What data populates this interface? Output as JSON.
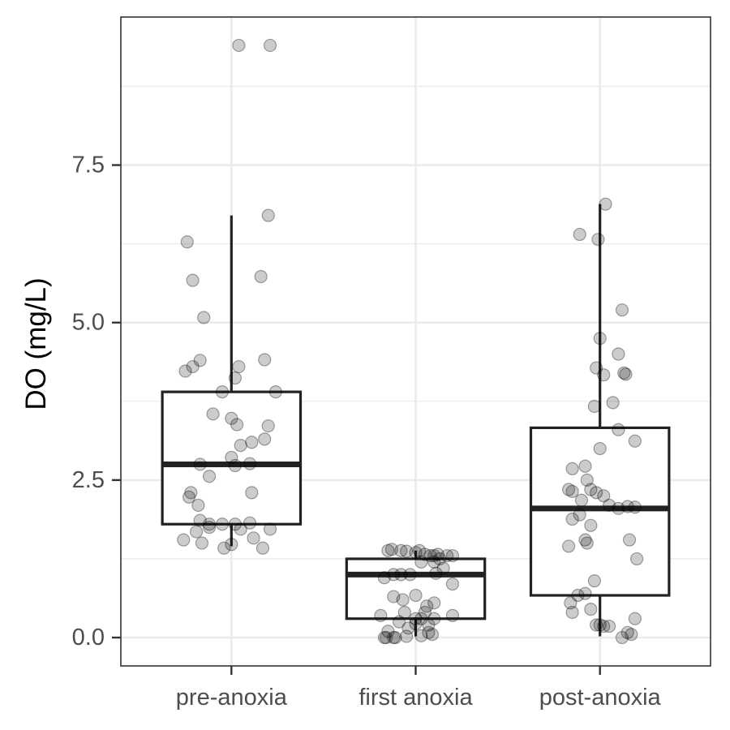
{
  "chart_data": {
    "type": "box",
    "title": "",
    "xlabel": "",
    "ylabel": "DO (mg/L)",
    "ylim": [
      -0.45,
      9.85
    ],
    "yticks": [
      0.0,
      2.5,
      5.0,
      7.5
    ],
    "ytick_labels": [
      "0.0",
      "2.5",
      "5.0",
      "7.5"
    ],
    "grid": true,
    "categories": [
      "pre-anoxia",
      "first anoxia",
      "post-anoxia"
    ],
    "boxes": [
      {
        "category": "pre-anoxia",
        "whisker_low": 1.45,
        "q1": 1.8,
        "median": 2.75,
        "q3": 3.9,
        "whisker_high": 6.7
      },
      {
        "category": "first anoxia",
        "whisker_low": 0.02,
        "q1": 0.3,
        "median": 1.0,
        "q3": 1.25,
        "whisker_high": 1.38
      },
      {
        "category": "post-anoxia",
        "whisker_low": 0.02,
        "q1": 0.67,
        "median": 2.05,
        "q3": 3.33,
        "whisker_high": 6.88
      }
    ],
    "points": [
      {
        "category": "pre-anoxia",
        "jitter": [
          0.04,
          0.21,
          -0.24,
          0.2,
          0.16,
          -0.21,
          -0.15,
          0.18,
          -0.25,
          -0.17,
          -0.21,
          0.04,
          0.02,
          -0.05,
          0.24,
          0.2,
          -0.1,
          0.0,
          0.03,
          0.11,
          0.18,
          0.05,
          0.0,
          -0.17,
          0.02,
          0.1,
          -0.12,
          -0.22,
          0.11,
          -0.23,
          -0.18,
          -0.17,
          0.02,
          0.1,
          -0.05,
          -0.12,
          0.05,
          0.21,
          -0.19,
          -0.26,
          0.12,
          -0.04,
          0.0,
          0.17,
          -0.16,
          -0.12
        ],
        "values": [
          9.4,
          9.4,
          6.28,
          6.7,
          5.73,
          5.67,
          5.08,
          4.41,
          4.23,
          4.4,
          4.3,
          4.3,
          4.12,
          3.9,
          3.9,
          3.36,
          3.55,
          3.48,
          3.38,
          3.1,
          3.15,
          3.05,
          2.86,
          2.75,
          2.73,
          2.76,
          2.56,
          2.3,
          2.3,
          2.23,
          2.1,
          1.86,
          1.8,
          1.82,
          1.8,
          1.75,
          1.72,
          1.72,
          1.68,
          1.55,
          1.58,
          1.42,
          1.48,
          1.42,
          1.5,
          1.8
        ]
      },
      {
        "category": "first anoxia",
        "jitter": [
          -0.15,
          -0.13,
          -0.08,
          -0.05,
          0.0,
          0.02,
          0.05,
          0.08,
          0.1,
          0.12,
          0.17,
          0.2,
          -0.17,
          -0.12,
          -0.08,
          -0.03,
          0.03,
          0.1,
          0.15,
          0.2,
          -0.12,
          -0.07,
          0.0,
          0.06,
          0.1,
          -0.17,
          -0.12,
          -0.06,
          0.0,
          0.03,
          0.07,
          0.1,
          0.2,
          -0.16,
          -0.11,
          -0.05,
          0.03,
          0.07,
          -0.19,
          -0.15,
          -0.09,
          -0.04,
          0.0,
          0.05,
          0.09,
          0.11,
          0.13
        ],
        "values": [
          1.38,
          1.4,
          1.38,
          1.37,
          1.35,
          1.38,
          1.32,
          1.3,
          1.3,
          1.32,
          1.3,
          1.3,
          0.95,
          1.0,
          1.0,
          1.0,
          1.2,
          1.2,
          1.1,
          0.85,
          0.65,
          0.6,
          0.67,
          0.5,
          0.55,
          0.0,
          0.0,
          0.4,
          0.3,
          0.3,
          0.2,
          0.3,
          0.35,
          0.0,
          0.0,
          0.02,
          0.03,
          0.08,
          0.35,
          0.1,
          0.25,
          0.15,
          0.22,
          0.4,
          0.05,
          1.02,
          1.25
        ]
      },
      {
        "category": "post-anoxia",
        "jitter": [
          0.03,
          -0.11,
          -0.01,
          0.12,
          0.0,
          0.1,
          -0.02,
          0.13,
          0.02,
          0.14,
          0.07,
          -0.03,
          0.1,
          0.19,
          0.0,
          -0.08,
          -0.15,
          -0.07,
          -0.17,
          -0.15,
          -0.05,
          -0.02,
          0.02,
          -0.1,
          0.05,
          0.15,
          0.19,
          0.1,
          -0.11,
          -0.15,
          -0.05,
          -0.08,
          -0.07,
          -0.17,
          -0.03,
          -0.08,
          -0.12,
          -0.05,
          -0.15,
          0.19,
          -0.02,
          0.0,
          0.02,
          0.05,
          0.15,
          0.17,
          0.12,
          0.16,
          0.2,
          -0.16
        ],
        "values": [
          6.88,
          6.4,
          6.32,
          5.2,
          4.75,
          4.5,
          4.28,
          4.2,
          4.17,
          4.18,
          3.73,
          3.67,
          3.3,
          3.12,
          3.0,
          2.72,
          2.68,
          2.5,
          2.35,
          2.32,
          2.35,
          2.3,
          2.25,
          2.18,
          2.1,
          2.08,
          2.07,
          2.05,
          1.95,
          1.88,
          1.78,
          1.55,
          1.5,
          1.45,
          0.9,
          0.7,
          0.67,
          0.45,
          0.4,
          0.3,
          0.2,
          0.2,
          0.18,
          0.18,
          0.08,
          0.05,
          0.0,
          1.55,
          1.25,
          0.55
        ]
      }
    ],
    "colors": {
      "panel_border": "#333333",
      "grid": "#ebebeb",
      "box": "#222222",
      "point": "#000000",
      "tick_text": "#4d4d4d",
      "title_text": "#000000"
    }
  }
}
